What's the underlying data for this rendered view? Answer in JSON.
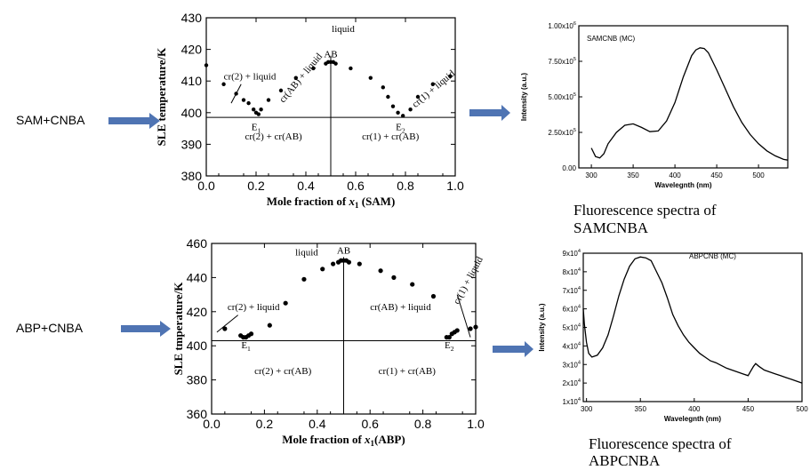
{
  "left_labels": {
    "row1": "SAM+CNBA",
    "row2": "ABP+CNBA"
  },
  "captions": {
    "fluor1_line1": "Fluorescence spectra of",
    "fluor1_line2": "SAMCNBA",
    "fluor2_line1": "Fluorescence spectra of",
    "fluor2_line2": "ABPCNBA"
  },
  "chart_data": [
    {
      "id": "sle_sam",
      "type": "scatter",
      "ylabel": "SLE temperature/K",
      "xlabel_prefix": "Mole fraction of ",
      "xlabel_var": "x",
      "xlabel_sub": "1",
      "xlabel_suffix": " (SAM)",
      "xlim": [
        0,
        1
      ],
      "ylim": [
        380,
        430
      ],
      "xticks": [
        "0.0",
        "0.2",
        "0.4",
        "0.6",
        "0.8",
        "1.0"
      ],
      "yticks": [
        "380",
        "390",
        "400",
        "410",
        "420",
        "430"
      ],
      "hline": 398.5,
      "vline": 0.5,
      "annotations": {
        "liquid": "liquid",
        "ab": "AB",
        "cr2_liquid": "cr(2) + liquid",
        "crab_liquid": "cr(AB) + liquid",
        "cr1_liquid": "cr(1) + liquid",
        "cr2_crab": "cr(2) + cr(AB)",
        "cr1_crab": "cr(1) + cr(AB)",
        "e1": "E",
        "e1_sub": "1",
        "e2": "E",
        "e2_sub": "2"
      },
      "points": [
        [
          0.0,
          415
        ],
        [
          0.07,
          409
        ],
        [
          0.12,
          406
        ],
        [
          0.15,
          404
        ],
        [
          0.17,
          403
        ],
        [
          0.19,
          401
        ],
        [
          0.2,
          400
        ],
        [
          0.21,
          399.5
        ],
        [
          0.22,
          401
        ],
        [
          0.25,
          404
        ],
        [
          0.3,
          407
        ],
        [
          0.36,
          411
        ],
        [
          0.43,
          414
        ],
        [
          0.48,
          415.5
        ],
        [
          0.49,
          416
        ],
        [
          0.5,
          416
        ],
        [
          0.51,
          416
        ],
        [
          0.52,
          415.5
        ],
        [
          0.58,
          414
        ],
        [
          0.66,
          411
        ],
        [
          0.71,
          408
        ],
        [
          0.73,
          405
        ],
        [
          0.75,
          402
        ],
        [
          0.77,
          400
        ],
        [
          0.79,
          399
        ],
        [
          0.82,
          401
        ],
        [
          0.85,
          405
        ],
        [
          0.91,
          409
        ],
        [
          0.98,
          411.5
        ]
      ]
    },
    {
      "id": "fluor_sam",
      "type": "line",
      "title": "SAMCNB (MC)",
      "xlabel": "Wavelegnth (nm)",
      "ylabel": "Intensity (a.u.)",
      "xlim": [
        285,
        535
      ],
      "ylim": [
        0,
        1000000
      ],
      "xticks": [
        "300",
        "350",
        "400",
        "450",
        "500"
      ],
      "yticks": [
        {
          "m": "0.00",
          "e": ""
        },
        {
          "m": "2.50x10",
          "e": "5"
        },
        {
          "m": "5.00x10",
          "e": "5"
        },
        {
          "m": "7.50x10",
          "e": "5"
        },
        {
          "m": "1.00x10",
          "e": "6"
        }
      ],
      "x": [
        300,
        305,
        310,
        315,
        320,
        330,
        340,
        350,
        360,
        370,
        380,
        390,
        400,
        410,
        420,
        425,
        430,
        435,
        440,
        450,
        460,
        470,
        480,
        490,
        500,
        510,
        520,
        530,
        535
      ],
      "y": [
        140000,
        80000,
        70000,
        100000,
        170000,
        250000,
        300000,
        310000,
        285000,
        255000,
        260000,
        330000,
        460000,
        640000,
        790000,
        830000,
        845000,
        840000,
        810000,
        690000,
        560000,
        430000,
        320000,
        235000,
        170000,
        120000,
        85000,
        60000,
        55000
      ]
    },
    {
      "id": "sle_abp",
      "type": "scatter",
      "ylabel": "SLE tmperature/K",
      "xlabel_prefix": "Mole fraction of ",
      "xlabel_var": "x",
      "xlabel_sub": "1",
      "xlabel_suffix": "(ABP)",
      "xlim": [
        0,
        1
      ],
      "ylim": [
        360,
        460
      ],
      "xticks": [
        "0.0",
        "0.2",
        "0.4",
        "0.6",
        "0.8",
        "1.0"
      ],
      "yticks": [
        "360",
        "380",
        "400",
        "420",
        "440",
        "460"
      ],
      "hline": 403,
      "vline": 0.5,
      "annotations": {
        "liquid": "liquid",
        "ab": "AB",
        "cr2_liquid": "cr(2) + liquid",
        "crab_liquid": "cr(AB) + liquid",
        "cr1_liquid": "cr(1) + liquid",
        "cr2_crab": "cr(2) + cr(AB)",
        "cr1_crab": "cr(1) + cr(AB)",
        "e1": "E",
        "e1_sub": "1",
        "e2": "E",
        "e2_sub": "2"
      },
      "points": [
        [
          0.05,
          410
        ],
        [
          0.11,
          406
        ],
        [
          0.12,
          405
        ],
        [
          0.13,
          405
        ],
        [
          0.14,
          406
        ],
        [
          0.15,
          407
        ],
        [
          0.22,
          412
        ],
        [
          0.28,
          425
        ],
        [
          0.35,
          439
        ],
        [
          0.42,
          445
        ],
        [
          0.46,
          448
        ],
        [
          0.48,
          449
        ],
        [
          0.49,
          450
        ],
        [
          0.5,
          450
        ],
        [
          0.51,
          450
        ],
        [
          0.52,
          449
        ],
        [
          0.56,
          448
        ],
        [
          0.64,
          444
        ],
        [
          0.69,
          440
        ],
        [
          0.76,
          436
        ],
        [
          0.84,
          429
        ],
        [
          0.89,
          405
        ],
        [
          0.9,
          405
        ],
        [
          0.91,
          407
        ],
        [
          0.92,
          408
        ],
        [
          0.93,
          409
        ],
        [
          0.98,
          410
        ],
        [
          1.0,
          411
        ]
      ]
    },
    {
      "id": "fluor_abp",
      "type": "line",
      "title": "ABPCNB (MC)",
      "xlabel": "Wavelegnth (nm)",
      "ylabel": "Intensity (a.u.)",
      "xlim": [
        297,
        500
      ],
      "ylim": [
        10000,
        90000
      ],
      "xticks": [
        "300",
        "350",
        "400",
        "450",
        "500"
      ],
      "yticks": [
        {
          "m": "1x10",
          "e": "4"
        },
        {
          "m": "2x10",
          "e": "4"
        },
        {
          "m": "3x10",
          "e": "4"
        },
        {
          "m": "4x10",
          "e": "4"
        },
        {
          "m": "5x10",
          "e": "4"
        },
        {
          "m": "6x10",
          "e": "4"
        },
        {
          "m": "7x10",
          "e": "4"
        },
        {
          "m": "8x10",
          "e": "4"
        },
        {
          "m": "9x10",
          "e": "4"
        }
      ],
      "x": [
        297,
        298,
        300,
        302,
        305,
        310,
        315,
        320,
        325,
        330,
        335,
        340,
        345,
        350,
        355,
        360,
        365,
        370,
        375,
        380,
        385,
        390,
        395,
        400,
        405,
        410,
        415,
        420,
        425,
        430,
        435,
        440,
        445,
        450,
        452,
        455,
        457,
        460,
        465,
        470,
        475,
        480,
        485,
        490,
        495,
        500
      ],
      "y": [
        60000,
        52000,
        42000,
        36000,
        34000,
        35000,
        39000,
        46000,
        56000,
        67000,
        76000,
        83000,
        87000,
        88000,
        87500,
        86000,
        80000,
        74000,
        66000,
        57000,
        51000,
        46000,
        42000,
        39000,
        36000,
        34000,
        32000,
        31000,
        29500,
        28000,
        27000,
        26000,
        25000,
        24000,
        26000,
        29000,
        30500,
        29000,
        27000,
        26000,
        25000,
        24000,
        23000,
        22000,
        21000,
        20000
      ]
    }
  ]
}
